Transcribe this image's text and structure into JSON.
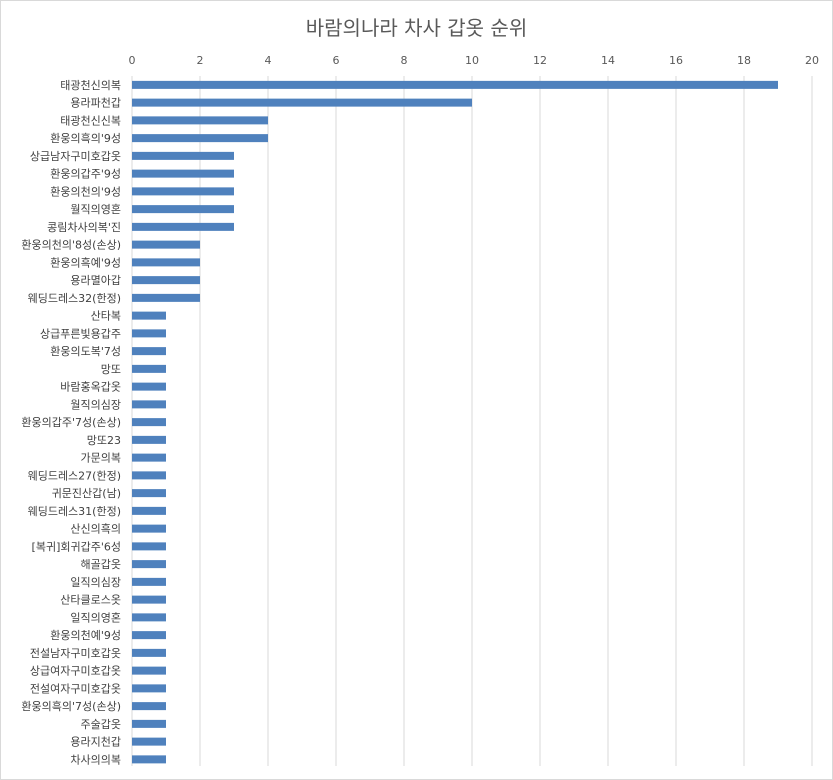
{
  "chart_data": {
    "type": "bar",
    "orientation": "horizontal",
    "title": "바람의나라 차사 갑옷 순위",
    "xlabel": "",
    "ylabel": "",
    "xlim": [
      0,
      20
    ],
    "x_ticks": [
      0,
      2,
      4,
      6,
      8,
      10,
      12,
      14,
      16,
      18,
      20
    ],
    "x_axis_position": "top",
    "grid": true,
    "legend": "none",
    "bar_color": "#4f81bd",
    "categories": [
      "태광천신의복",
      "용라파천갑",
      "태광천신신복",
      "환웅의흑의'9성",
      "상급남자구미호갑옷",
      "환웅의갑주'9성",
      "환웅의천의'9성",
      "월직의영혼",
      "콩림차사의복'진",
      "환웅의천의'8성(손상)",
      "환웅의흑예'9성",
      "용라멸아갑",
      "웨딩드레스32(한정)",
      "산타복",
      "상급푸른빛용갑주",
      "환웅의도복'7성",
      "망또",
      "바람홍옥갑옷",
      "월직의심장",
      "환웅의갑주'7성(손상)",
      "망또23",
      "가문의복",
      "웨딩드레스27(한정)",
      "귀문진산갑(남)",
      "웨딩드레스31(한정)",
      "산신의흑의",
      "[복귀]회귀갑주'6성",
      "해골갑옷",
      "일직의심장",
      "산타클로스옷",
      "일직의영혼",
      "환웅의천예'9성",
      "전설남자구미호갑옷",
      "상급여자구미호갑옷",
      "전설여자구미호갑옷",
      "환웅의흑의'7성(손상)",
      "주술갑옷",
      "용라지천갑",
      "차사의의복"
    ],
    "values": [
      19,
      10,
      4,
      4,
      3,
      3,
      3,
      3,
      3,
      2,
      2,
      2,
      2,
      1,
      1,
      1,
      1,
      1,
      1,
      1,
      1,
      1,
      1,
      1,
      1,
      1,
      1,
      1,
      1,
      1,
      1,
      1,
      1,
      1,
      1,
      1,
      1,
      1,
      1
    ]
  }
}
